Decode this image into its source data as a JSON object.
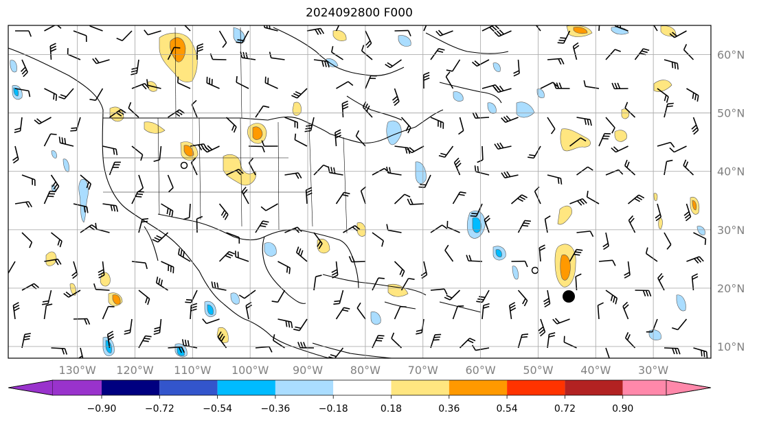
{
  "title": "2024092800 F000",
  "map": {
    "lat_labels": [
      "60°N",
      "50°N",
      "40°N",
      "30°N",
      "20°N",
      "10°N"
    ],
    "lon_labels": [
      "130°W",
      "120°W",
      "110°W",
      "100°W",
      "90°W",
      "80°W",
      "70°W",
      "60°W",
      "50°W",
      "40°W",
      "30°W"
    ],
    "lat_values": [
      60,
      50,
      40,
      30,
      20,
      10
    ],
    "lon_values": [
      -130,
      -120,
      -110,
      -100,
      -90,
      -80,
      -70,
      -60,
      -50,
      -40,
      -30
    ],
    "extent": {
      "west": -142,
      "east": -20,
      "south": 8,
      "north": 65
    }
  },
  "colorbar": {
    "ticks": [
      "−0.90",
      "−0.72",
      "−0.54",
      "−0.36",
      "−0.18",
      "0.18",
      "0.36",
      "0.54",
      "0.72",
      "0.90"
    ],
    "colors": [
      "#9933cc",
      "#000080",
      "#3355cc",
      "#00bbff",
      "#aaddff",
      "#ffffff",
      "#ffe680",
      "#ff9900",
      "#ff3300",
      "#b22222",
      "#ff88aa"
    ]
  }
}
